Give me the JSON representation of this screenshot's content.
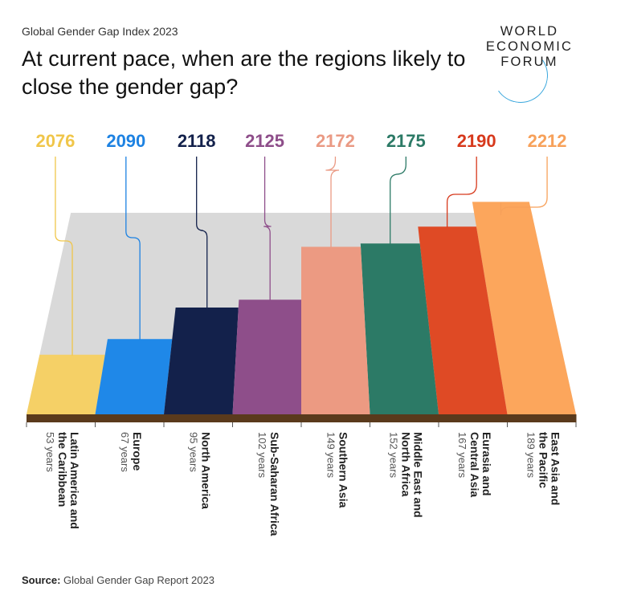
{
  "header": {
    "subtitle": "Global Gender Gap Index 2023",
    "title": "At current pace, when are the regions likely to close the gender gap?"
  },
  "logo": {
    "line1": "WORLD",
    "line2": "ECONOMIC",
    "line3": "FORUM"
  },
  "source": {
    "label": "Source:",
    "text": "Global Gender Gap Report 2023"
  },
  "chart_data": {
    "type": "bar",
    "categories": [
      "Latin America and the Caribbean",
      "Europe",
      "North America",
      "Sub-Saharan Africa",
      "Southern Asia",
      "Middle East and North Africa",
      "Eurasia and Central Asia",
      "East Asia and the Pacific"
    ],
    "series": [
      {
        "values": [
          53,
          67,
          95,
          102,
          149,
          152,
          167,
          189
        ]
      }
    ],
    "year_labels": [
      "2076",
      "2090",
      "2118",
      "2125",
      "2172",
      "2175",
      "2190",
      "2212"
    ],
    "duration_labels": [
      "53 years",
      "67 years",
      "95 years",
      "102 years",
      "149 years",
      "152 years",
      "167 years",
      "189 years"
    ],
    "category_label_lines": [
      [
        "Latin America and",
        "the Caribbean"
      ],
      [
        "Europe"
      ],
      [
        "North America"
      ],
      [
        "Sub-Saharan Africa"
      ],
      [
        "Southern Asia"
      ],
      [
        "Middle East and",
        "North Africa"
      ],
      [
        "Eurasia and",
        "Central Asia"
      ],
      [
        "East Asia and",
        "the Pacific"
      ]
    ],
    "colors": [
      "#f5d066",
      "#1f88e8",
      "#13214b",
      "#8e4e8a",
      "#ec9a82",
      "#2c7a66",
      "#df4a25",
      "#fca65c"
    ],
    "label_colors": [
      "#f0c64a",
      "#1d82e2",
      "#13214b",
      "#8e4e8a",
      "#ea9a84",
      "#2c7a66",
      "#d7391c",
      "#f7a15a"
    ],
    "background_color": "#d9d9d9"
  }
}
